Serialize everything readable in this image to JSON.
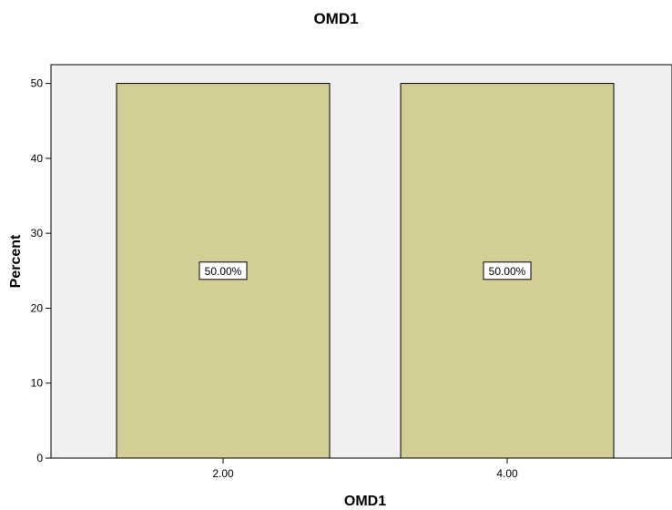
{
  "chart_data": {
    "type": "bar",
    "title": "OMD1",
    "xlabel": "OMD1",
    "ylabel": "Percent",
    "categories": [
      "2.00",
      "4.00"
    ],
    "values": [
      50,
      50
    ],
    "data_labels": [
      "50.00%",
      "50.00%"
    ],
    "ylim": [
      0,
      52.5
    ],
    "yticks": [
      0,
      10,
      20,
      30,
      40,
      50
    ],
    "grid": false,
    "legend": "none",
    "colors": {
      "bar_fill": "#d3ce96",
      "plot_background": "#f0f0f0",
      "axis": "#000000"
    }
  }
}
